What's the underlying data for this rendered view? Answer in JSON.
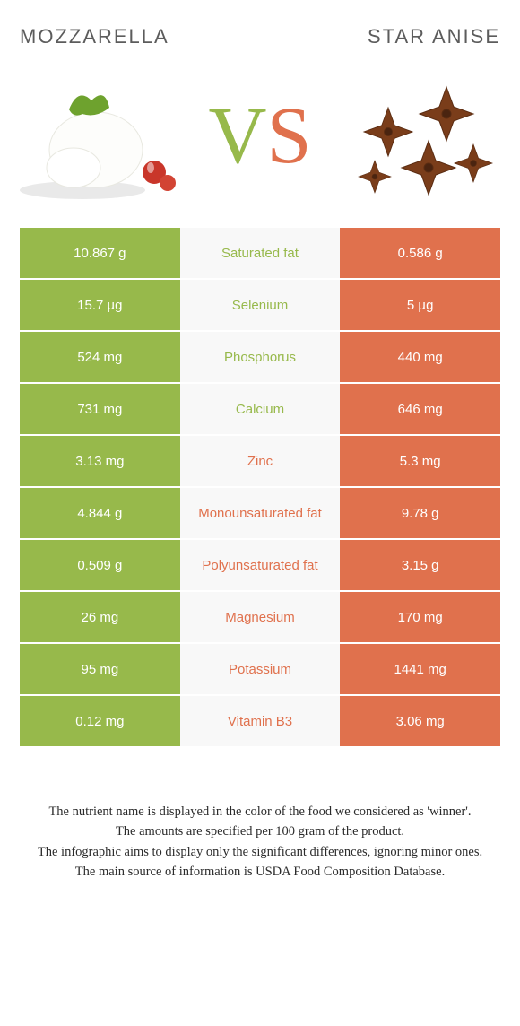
{
  "colors": {
    "green": "#97b94b",
    "orange": "#e0714d",
    "vs_v": "#97b94b",
    "vs_s": "#e0714d",
    "mid_bg": "#f8f8f8"
  },
  "titles": {
    "left": "Mozzarella",
    "right": "Star anise"
  },
  "vs": {
    "v": "V",
    "s": "S"
  },
  "rows": [
    {
      "left": "10.867 g",
      "mid": "Saturated fat",
      "right": "0.586 g",
      "left_color": "#97b94b",
      "right_color": "#e0714d",
      "mid_color": "#97b94b"
    },
    {
      "left": "15.7 µg",
      "mid": "Selenium",
      "right": "5 µg",
      "left_color": "#97b94b",
      "right_color": "#e0714d",
      "mid_color": "#97b94b"
    },
    {
      "left": "524 mg",
      "mid": "Phosphorus",
      "right": "440 mg",
      "left_color": "#97b94b",
      "right_color": "#e0714d",
      "mid_color": "#97b94b"
    },
    {
      "left": "731 mg",
      "mid": "Calcium",
      "right": "646 mg",
      "left_color": "#97b94b",
      "right_color": "#e0714d",
      "mid_color": "#97b94b"
    },
    {
      "left": "3.13 mg",
      "mid": "Zinc",
      "right": "5.3 mg",
      "left_color": "#97b94b",
      "right_color": "#e0714d",
      "mid_color": "#e0714d"
    },
    {
      "left": "4.844 g",
      "mid": "Monounsaturated fat",
      "right": "9.78 g",
      "left_color": "#97b94b",
      "right_color": "#e0714d",
      "mid_color": "#e0714d"
    },
    {
      "left": "0.509 g",
      "mid": "Polyunsaturated fat",
      "right": "3.15 g",
      "left_color": "#97b94b",
      "right_color": "#e0714d",
      "mid_color": "#e0714d"
    },
    {
      "left": "26 mg",
      "mid": "Magnesium",
      "right": "170 mg",
      "left_color": "#97b94b",
      "right_color": "#e0714d",
      "mid_color": "#e0714d"
    },
    {
      "left": "95 mg",
      "mid": "Potassium",
      "right": "1441 mg",
      "left_color": "#97b94b",
      "right_color": "#e0714d",
      "mid_color": "#e0714d"
    },
    {
      "left": "0.12 mg",
      "mid": "Vitamin B3",
      "right": "3.06 mg",
      "left_color": "#97b94b",
      "right_color": "#e0714d",
      "mid_color": "#e0714d"
    }
  ],
  "footer": {
    "l1": "The nutrient name is displayed in the color of the food we considered as 'winner'.",
    "l2": "The amounts are specified per 100 gram of the product.",
    "l3": "The infographic aims to display only the significant differences, ignoring minor ones.",
    "l4": "The main source of information is USDA Food Composition Database."
  }
}
